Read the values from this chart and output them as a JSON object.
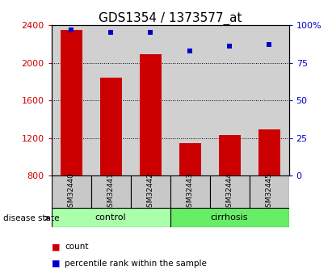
{
  "title": "GDS1354 / 1373577_at",
  "samples": [
    "GSM32440",
    "GSM32441",
    "GSM32442",
    "GSM32443",
    "GSM32444",
    "GSM32445"
  ],
  "counts": [
    2350,
    1840,
    2095,
    1145,
    1235,
    1290
  ],
  "percentile_ranks": [
    97,
    95,
    95,
    83,
    86,
    87
  ],
  "ylim_left": [
    800,
    2400
  ],
  "ylim_right": [
    0,
    100
  ],
  "yticks_left": [
    800,
    1200,
    1600,
    2000,
    2400
  ],
  "yticks_right": [
    0,
    25,
    50,
    75,
    100
  ],
  "yticklabels_right": [
    "0",
    "25",
    "50",
    "75",
    "100%"
  ],
  "groups": [
    {
      "label": "control",
      "indices": [
        0,
        1,
        2
      ],
      "color": "#aaffaa"
    },
    {
      "label": "cirrhosis",
      "indices": [
        3,
        4,
        5
      ],
      "color": "#66ee66"
    }
  ],
  "bar_color": "#cc0000",
  "scatter_color": "#0000cc",
  "bar_width": 0.55,
  "background_color": "#ffffff",
  "plot_bg_color": "#d0d0d0",
  "sample_box_color": "#c8c8c8",
  "title_fontsize": 11,
  "tick_fontsize": 8,
  "legend_items": [
    {
      "color": "#cc0000",
      "label": "count"
    },
    {
      "color": "#0000cc",
      "label": "percentile rank within the sample"
    }
  ]
}
